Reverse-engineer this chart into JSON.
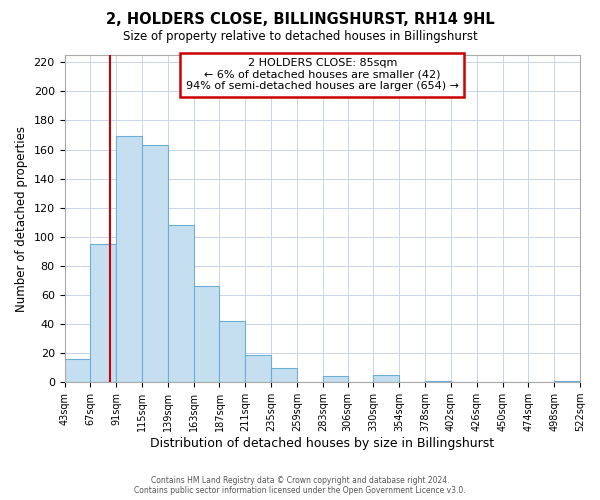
{
  "title": "2, HOLDERS CLOSE, BILLINGSHURST, RH14 9HL",
  "subtitle": "Size of property relative to detached houses in Billingshurst",
  "xlabel": "Distribution of detached houses by size in Billingshurst",
  "ylabel": "Number of detached properties",
  "bar_edges": [
    43,
    67,
    91,
    115,
    139,
    163,
    187,
    211,
    235,
    259,
    283,
    306,
    330,
    354,
    378,
    402,
    426,
    450,
    474,
    498,
    522
  ],
  "bar_heights": [
    16,
    95,
    169,
    163,
    108,
    66,
    42,
    19,
    10,
    0,
    4,
    0,
    5,
    0,
    1,
    0,
    0,
    0,
    0,
    1
  ],
  "bar_color": "#c5dff0",
  "bar_edge_color": "#6baed6",
  "vline_x": 85,
  "vline_color": "#cc0000",
  "ylim": [
    0,
    225
  ],
  "yticks": [
    0,
    20,
    40,
    60,
    80,
    100,
    120,
    140,
    160,
    180,
    200,
    220
  ],
  "xtick_labels": [
    "43sqm",
    "67sqm",
    "91sqm",
    "115sqm",
    "139sqm",
    "163sqm",
    "187sqm",
    "211sqm",
    "235sqm",
    "259sqm",
    "283sqm",
    "306sqm",
    "330sqm",
    "354sqm",
    "378sqm",
    "402sqm",
    "426sqm",
    "450sqm",
    "474sqm",
    "498sqm",
    "522sqm"
  ],
  "annotation_line1": "2 HOLDERS CLOSE: 85sqm",
  "annotation_line2": "← 6% of detached houses are smaller (42)",
  "annotation_line3": "94% of semi-detached houses are larger (654) →",
  "footer_line1": "Contains HM Land Registry data © Crown copyright and database right 2024.",
  "footer_line2": "Contains public sector information licensed under the Open Government Licence v3.0.",
  "background_color": "#ffffff",
  "grid_color": "#c8d4e8"
}
